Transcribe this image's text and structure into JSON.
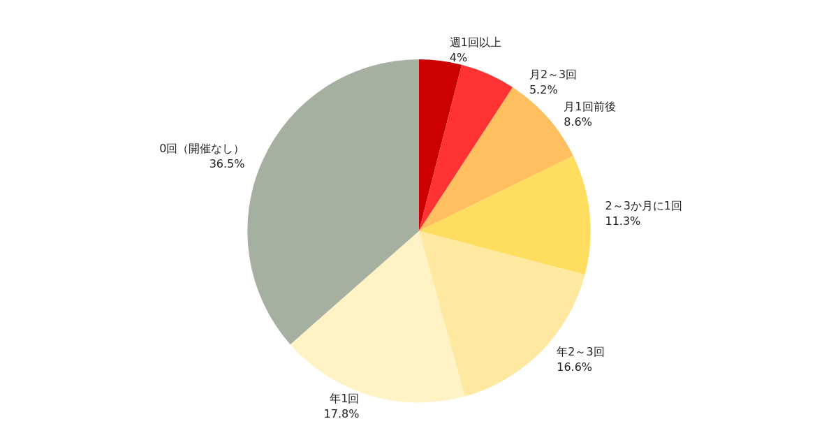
{
  "chart_data": {
    "type": "pie",
    "categories": [
      "週1回以上",
      "月2～3回",
      "月1回前後",
      "2～3か月に1回",
      "年2～3回",
      "年1回",
      "0回（開催なし）"
    ],
    "values": [
      4,
      5.2,
      8.6,
      11.3,
      16.6,
      17.8,
      36.5
    ],
    "value_labels": [
      "4%",
      "5.2%",
      "8.6%",
      "11.3%",
      "16.6%",
      "17.8%",
      "36.5%"
    ],
    "colors": [
      "#cc0000",
      "#ff3333",
      "#ffbf5f",
      "#ffdd5f",
      "#ffe9a0",
      "#fff2c4",
      "#a6b0a0"
    ],
    "legend": false
  }
}
